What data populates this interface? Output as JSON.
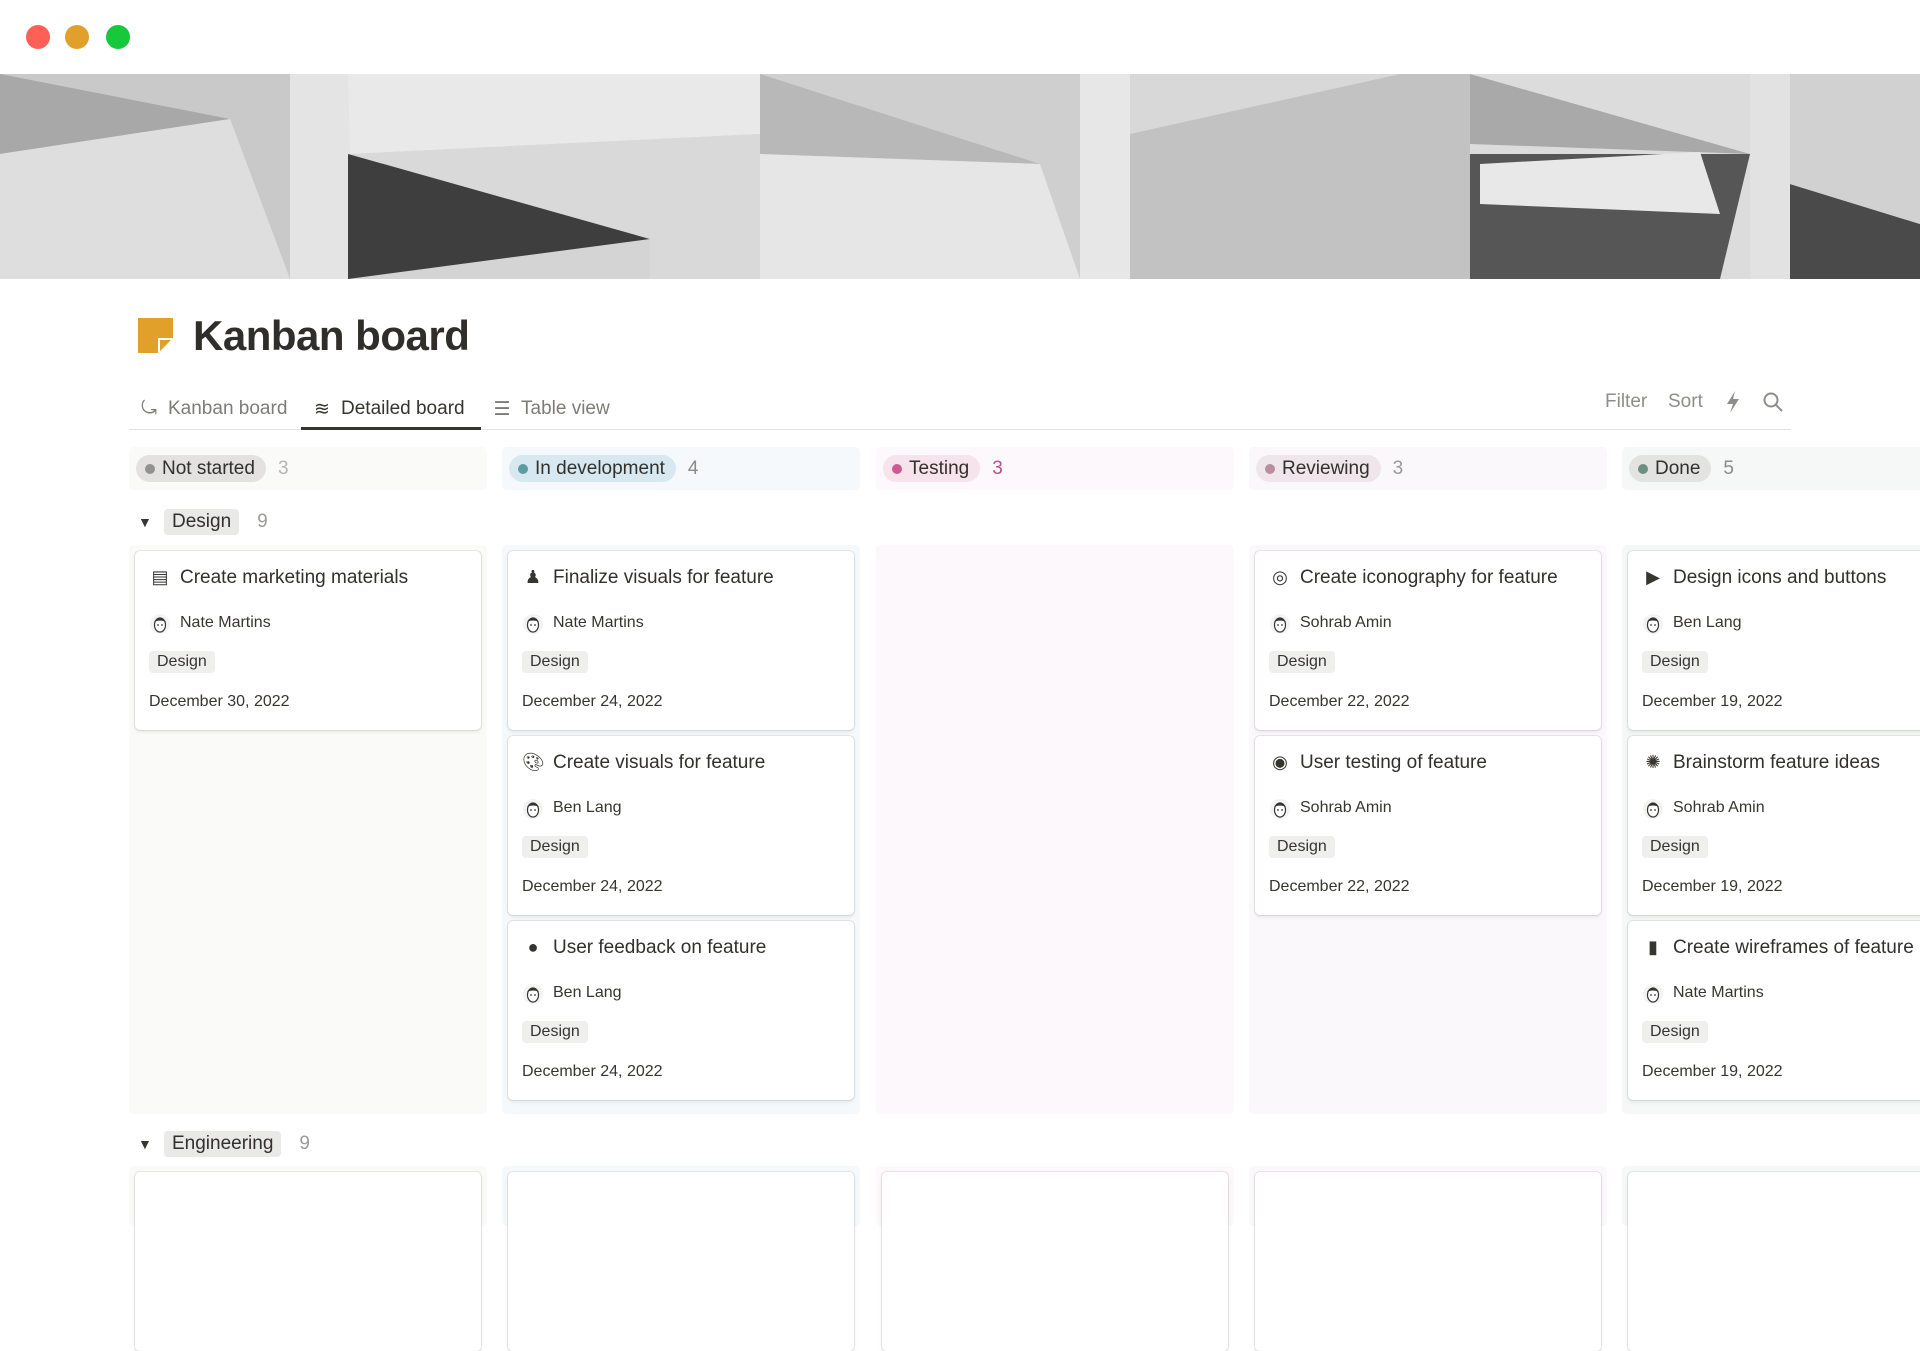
{
  "window": {
    "controls": [
      {
        "name": "close",
        "color": "#fe5f57"
      },
      {
        "name": "minimize",
        "color": "#e0a02a"
      },
      {
        "name": "maximize",
        "color": "#16c93c"
      }
    ]
  },
  "page": {
    "title": "Kanban board",
    "icon": "sticky-note-icon",
    "icon_color": "#e0a02a"
  },
  "tabs": [
    {
      "label": "Kanban board",
      "icon": "kanban-icon",
      "active": false
    },
    {
      "label": "Detailed board",
      "icon": "wave-icon",
      "active": true
    },
    {
      "label": "Table view",
      "icon": "list-icon",
      "active": false
    }
  ],
  "toolbar": {
    "filter": "Filter",
    "sort": "Sort",
    "automation_icon": "lightning-icon",
    "search_icon": "search-icon"
  },
  "columns": [
    {
      "label": "Not started",
      "count": "3",
      "col_bg": "#fafaf9",
      "pill_bg": "#e3e2e0",
      "dot": "#91918e",
      "count_color": "#b4b4b0"
    },
    {
      "label": "In development",
      "count": "4",
      "col_bg": "#f5f9fb",
      "pill_bg": "#d8e8f1",
      "dot": "#5e9aa1",
      "count_color": "#8a8a86"
    },
    {
      "label": "Testing",
      "count": "3",
      "col_bg": "#fcf8fb",
      "pill_bg": "#f6e3ec",
      "dot": "#cd5a8f",
      "count_color": "#c14c8a"
    },
    {
      "label": "Reviewing",
      "count": "3",
      "col_bg": "#faf8fa",
      "pill_bg": "#eee6ea",
      "dot": "#b88d9d",
      "count_color": "#9b9a97"
    },
    {
      "label": "Done",
      "count": "5",
      "col_bg": "#f6f8f7",
      "pill_bg": "#e3e4e2",
      "dot": "#6d8f7f",
      "count_color": "#8a8a86"
    }
  ],
  "groups": [
    {
      "label": "Design",
      "count": "9",
      "expanded": true,
      "cards": [
        [
          {
            "title": "Create marketing materials",
            "icon": "window-icon",
            "person": "Nate Martins",
            "tag": "Design",
            "date": "December 30, 2022"
          }
        ],
        [
          {
            "title": "Finalize visuals for feature",
            "icon": "stamp-icon",
            "person": "Nate Martins",
            "tag": "Design",
            "date": "December 24, 2022"
          },
          {
            "title": "Create visuals for feature",
            "icon": "palette-icon",
            "person": "Ben Lang",
            "tag": "Design",
            "date": "December 24, 2022"
          },
          {
            "title": "User feedback on feature",
            "icon": "speech-bubble-icon",
            "person": "Ben Lang",
            "tag": "Design",
            "date": "December 24, 2022"
          }
        ],
        [],
        [
          {
            "title": "Create iconography for feature",
            "icon": "target-icon",
            "person": "Sohrab Amin",
            "tag": "Design",
            "date": "December 22, 2022"
          },
          {
            "title": "User testing of feature",
            "icon": "user-circle-icon",
            "person": "Sohrab Amin",
            "tag": "Design",
            "date": "December 22, 2022"
          }
        ],
        [
          {
            "title": "Design icons and buttons",
            "icon": "play-circle-icon",
            "person": "Ben Lang",
            "tag": "Design",
            "date": "December 19, 2022"
          },
          {
            "title": "Brainstorm feature ideas",
            "icon": "brain-icon",
            "person": "Sohrab Amin",
            "tag": "Design",
            "date": "December 19, 2022"
          },
          {
            "title": "Create wireframes of feature",
            "icon": "phone-icon",
            "person": "Nate Martins",
            "tag": "Design",
            "date": "December 19, 2022"
          }
        ]
      ]
    },
    {
      "label": "Engineering",
      "count": "9",
      "expanded": true
    }
  ]
}
